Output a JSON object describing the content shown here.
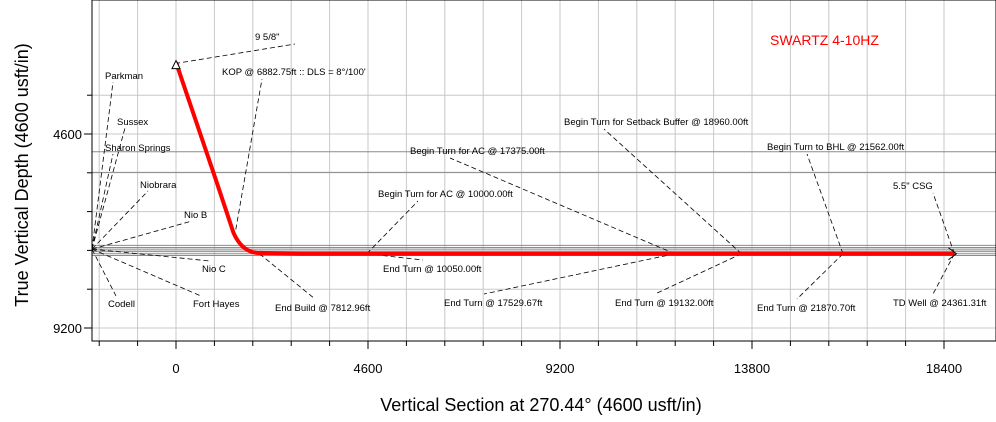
{
  "chart_data": {
    "type": "line",
    "title": "SWARTZ 4-10HZ",
    "title_color": "#ff0000",
    "xlabel": "Vertical Section at 270.44° (4600 usft/in)",
    "ylabel": "True Vertical Depth (4600 usft/in)",
    "xlim": [
      -1900,
      19200
    ],
    "ylim": [
      2900,
      10200
    ],
    "y_inverted": true,
    "grid": true,
    "x_ticks": [
      0,
      4600,
      9200,
      13800,
      18400
    ],
    "x_tick_labels": [
      "0",
      "4600",
      "9200",
      "13800",
      "18400"
    ],
    "y_ticks": [
      4600,
      9200
    ],
    "y_tick_labels": [
      "4600",
      "9200"
    ],
    "series": [
      {
        "color": "#ff0000",
        "points": [
          [
            0,
            2900
          ],
          [
            960,
            5700
          ],
          [
            1380,
            6950
          ],
          [
            1600,
            7280
          ],
          [
            2000,
            7420
          ],
          [
            3000,
            7440
          ],
          [
            8000,
            7440
          ],
          [
            13000,
            7440
          ],
          [
            18650,
            7440
          ]
        ]
      }
    ],
    "formations": [
      {
        "name": "Parkman",
        "tvd": 5020
      },
      {
        "name": "Sussex",
        "tvd": 5510
      },
      {
        "name": "Sharon Springs",
        "tvd": 7240
      },
      {
        "name": "Niobrara",
        "tvd": 7290
      },
      {
        "name": "Nio B",
        "tvd": 7330
      },
      {
        "name": "Nio C",
        "tvd": 7390
      },
      {
        "name": "Fort Hayes",
        "tvd": 7440
      },
      {
        "name": "Codell",
        "tvd": 7480
      }
    ],
    "annotations": [
      {
        "text": "9 5/8\"",
        "x": -20,
        "y": 2930
      },
      {
        "text": "KOP @ 6882.75ft :: DLS = 8°/100'",
        "x": 1400,
        "y": 7050
      },
      {
        "text": "End Build @ 7812.96ft",
        "x": 2000,
        "y": 7440
      },
      {
        "text": "Begin Turn for AC @ 10000.00ft",
        "x": 4570,
        "y": 7440
      },
      {
        "text": "End Turn @ 10050.00ft",
        "x": 4570,
        "y": 7440
      },
      {
        "text": "Begin Turn for AC @ 17375.00ft",
        "x": 11950,
        "y": 7440
      },
      {
        "text": "End Turn @ 17529.67ft",
        "x": 11950,
        "y": 7440
      },
      {
        "text": "Begin Turn for Setback Buffer @ 18960.00ft",
        "x": 13550,
        "y": 7440
      },
      {
        "text": "End Turn @ 19132.00ft",
        "x": 13550,
        "y": 7440
      },
      {
        "text": "Begin Turn to BHL @ 21562.00ft",
        "x": 15980,
        "y": 7440
      },
      {
        "text": "End Turn @ 21870.70ft",
        "x": 15980,
        "y": 7440
      },
      {
        "text": "5.5\" CSG",
        "x": 18650,
        "y": 7440
      },
      {
        "text": "TD Well @ 24361.31ft",
        "x": 18650,
        "y": 7440
      }
    ]
  }
}
